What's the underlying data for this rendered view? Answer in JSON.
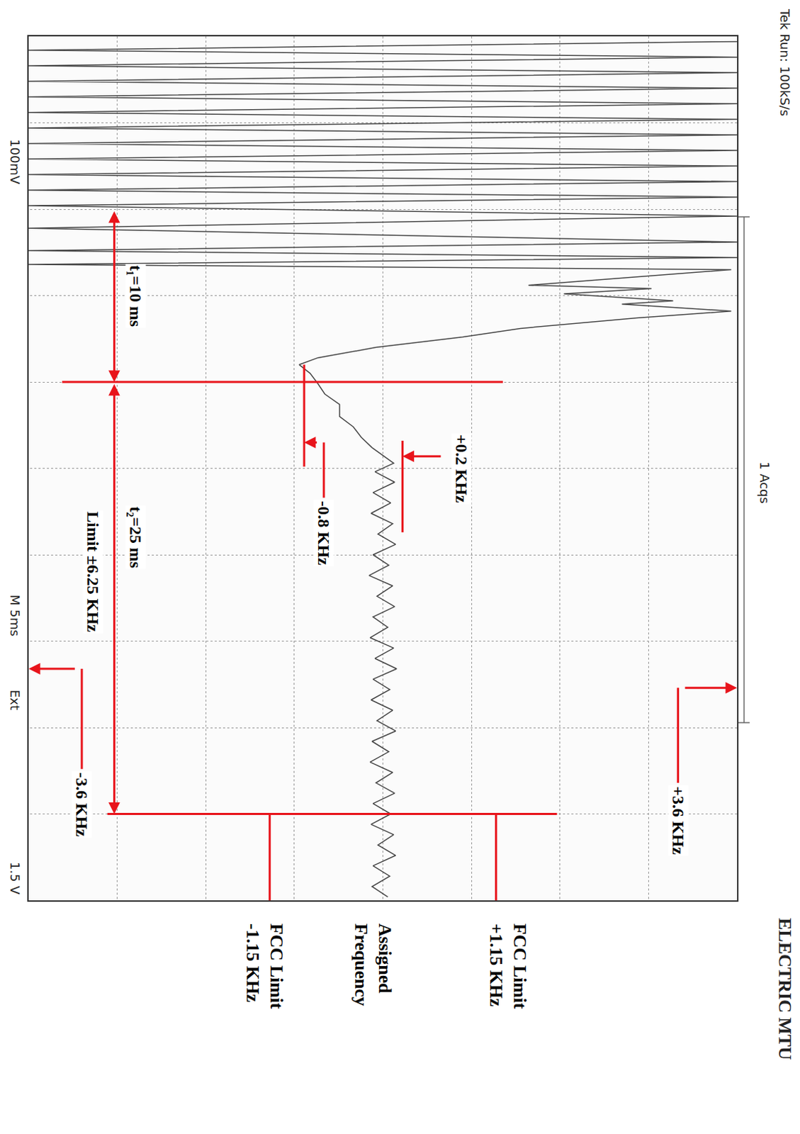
{
  "chart_data": {
    "type": "line",
    "color": "#444444",
    "grid": true,
    "tick_labels": false,
    "xlim": [
      0,
      50
    ],
    "xticks": [
      0,
      5,
      10,
      15,
      20,
      25,
      30,
      35,
      40,
      45,
      50
    ],
    "ylim": [
      -3.6,
      3.6
    ],
    "yticks": [
      -3.6,
      -2.7,
      -1.8,
      -0.9,
      0,
      0.9,
      1.8,
      2.7,
      3.6
    ],
    "x": [
      0.3,
      0.8,
      1.2,
      1.7,
      2.1,
      2.6,
      3.0,
      3.5,
      3.9,
      4.4,
      4.8,
      5.3,
      5.7,
      6.2,
      6.6,
      7.1,
      7.5,
      8.0,
      8.4,
      8.9,
      9.3,
      9.8,
      10.4,
      11.1,
      11.9,
      12.4,
      12.8,
      13.2,
      13.5,
      14.4,
      14.6,
      14.9,
      15.3,
      15.5,
      15.9,
      16.3,
      16.9,
      17.4,
      18.0,
      18.6,
      19.0,
      19.5,
      20.1,
      20.7,
      21.3,
      22.0,
      22.6,
      23.2,
      23.8,
      24.7,
      25.2,
      25.8,
      26.4,
      27.0,
      27.6,
      28.2,
      28.8,
      29.4,
      30.0,
      30.6,
      31.2,
      31.8,
      32.4,
      33.0,
      33.6,
      34.2,
      34.8,
      35.4,
      36.0,
      36.6,
      37.2,
      37.8,
      38.4,
      39.0,
      39.6,
      40.2,
      40.8,
      41.4,
      42.0,
      42.6,
      43.2,
      43.8,
      44.4,
      45.0,
      45.6,
      46.2,
      46.8,
      47.4,
      48.0,
      48.6,
      49.2,
      49.8
    ],
    "values": [
      3.6,
      -3.6,
      3.6,
      -3.6,
      3.6,
      -3.6,
      3.6,
      -3.6,
      3.6,
      -3.6,
      3.6,
      -3.6,
      3.6,
      -3.6,
      3.6,
      -3.6,
      3.6,
      -3.6,
      3.6,
      -3.6,
      3.6,
      -3.6,
      3.6,
      -3.6,
      3.6,
      -3.6,
      3.6,
      -3.6,
      3.54,
      1.48,
      2.73,
      1.84,
      2.95,
      2.43,
      3.54,
      2.58,
      1.4,
      0.81,
      -0.07,
      -0.66,
      -0.85,
      -0.74,
      -0.66,
      -0.59,
      -0.44,
      -0.44,
      -0.3,
      -0.22,
      -0.11,
      0.11,
      -0.08,
      0.12,
      -0.1,
      0.08,
      -0.12,
      0.1,
      -0.05,
      0.13,
      -0.1,
      0.06,
      -0.14,
      0.1,
      -0.06,
      0.12,
      -0.1,
      0.05,
      -0.13,
      0.11,
      -0.08,
      0.14,
      -0.1,
      0.07,
      -0.12,
      0.1,
      -0.06,
      0.13,
      -0.11,
      0.06,
      -0.13,
      0.1,
      -0.07,
      0.12,
      -0.1,
      0.08,
      -0.12,
      0.11,
      -0.05,
      0.13,
      -0.1,
      0.07,
      -0.11,
      0.05
    ],
    "annotations": {
      "t1": {
        "text": "t₁=10 ms",
        "start": 10,
        "duration": 10
      },
      "t2": {
        "text": "t₂=25 ms",
        "duration": 25,
        "limit": "Limit ±6.25 KHz"
      },
      "offset_high": {
        "text": "+0.2 KHz",
        "value": 0.2
      },
      "offset_low": {
        "text": "-0.8 KHz",
        "value": -0.8
      },
      "scale_top": {
        "text": "+3.6 KHz",
        "value": 3.6
      },
      "scale_bottom": {
        "text": "-3.6 KHz",
        "value": -3.6
      },
      "fcc_upper": {
        "text": "FCC Limit +1.15 KHz",
        "value": 1.15
      },
      "assigned": {
        "text": "Assigned Frequency",
        "value": 0
      },
      "fcc_lower": {
        "text": "FCC Limit -1.15 KHz",
        "value": -1.15
      }
    },
    "scope_text": {
      "header": "Tek Run: 100kS/s",
      "acquisitions": "1 Acqs",
      "channel": "100mV",
      "timebase": "M 5ms",
      "trigger_source": "Ext",
      "trigger_level": "1.5 V"
    },
    "page_header": "ELECTRIC MTU"
  }
}
